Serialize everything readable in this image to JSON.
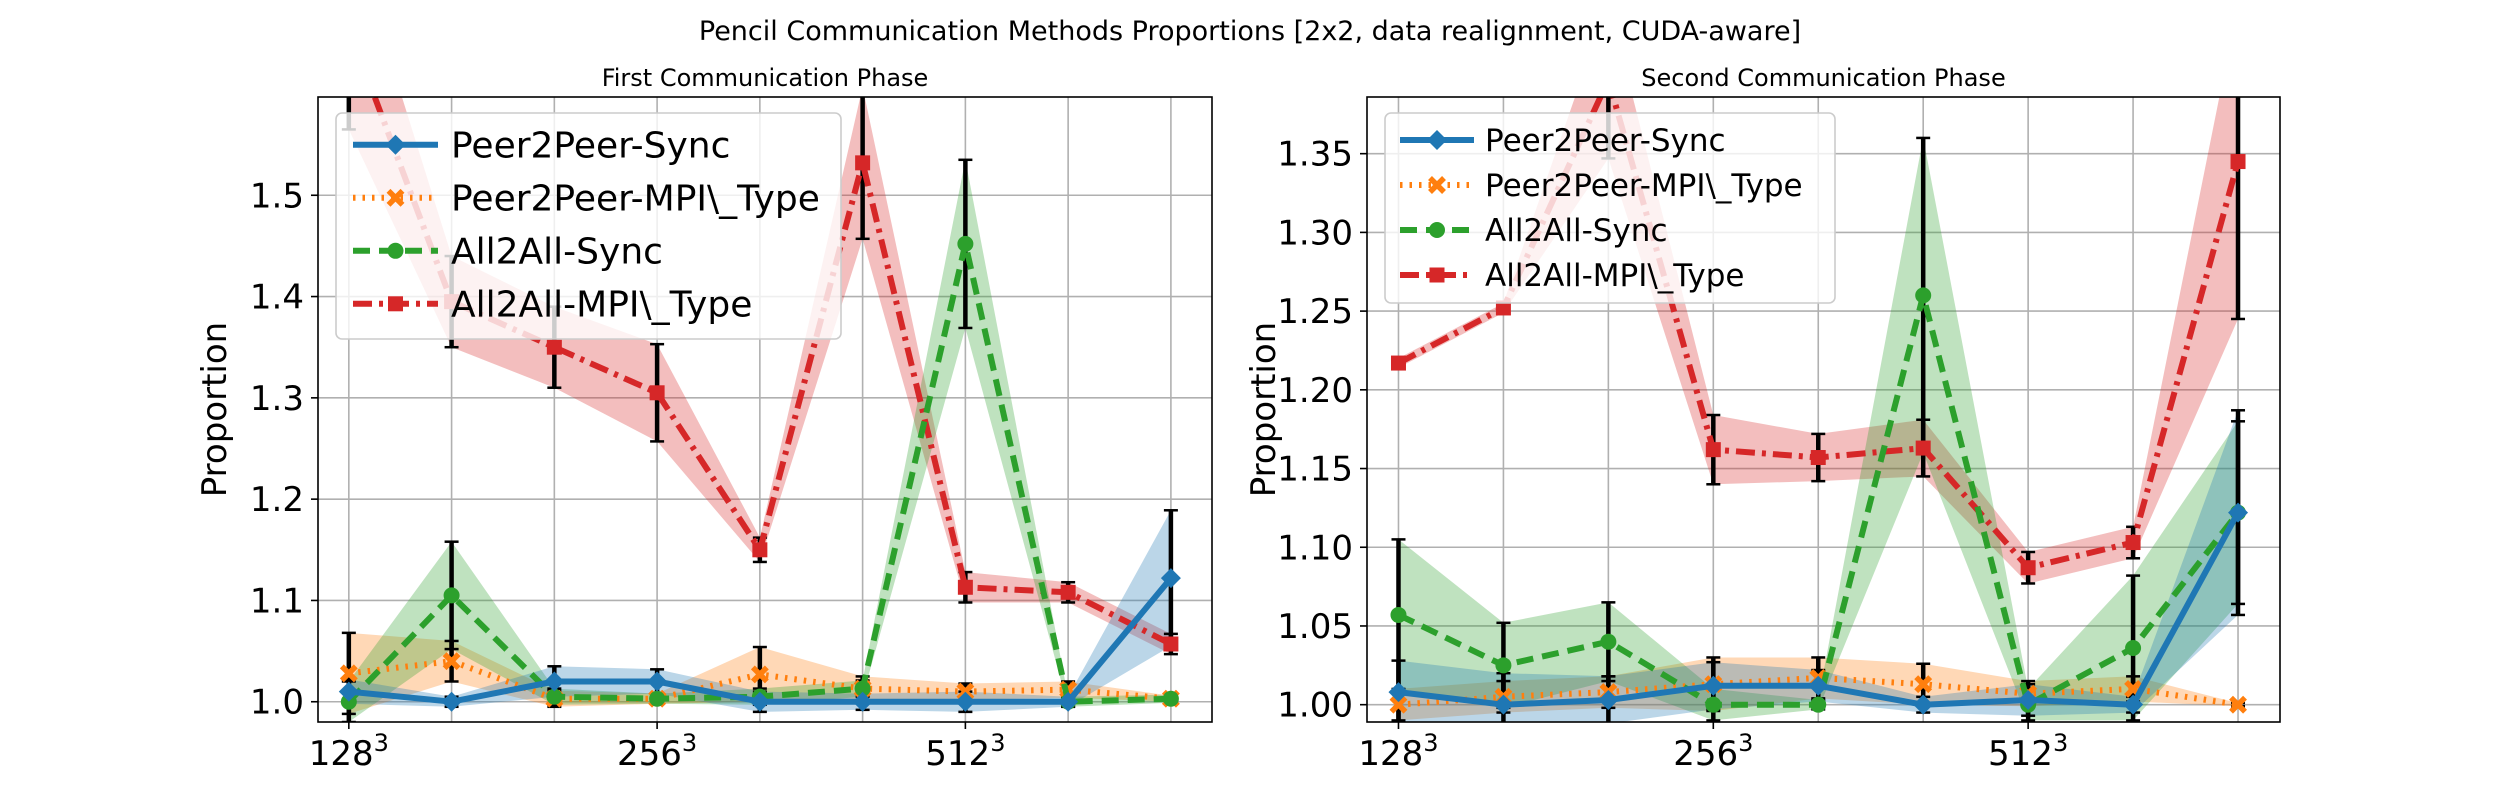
{
  "figure": {
    "title": "Pencil Communication Methods Proportions [2x2, data realignment, CUDA-aware]"
  },
  "colors": {
    "Peer2Peer-Sync": "#1f77b4",
    "Peer2Peer-MPI\\_Type": "#ff7f0e",
    "All2All-Sync": "#2ca02c",
    "All2All-MPI\\_Type": "#d62728"
  },
  "chart_data": [
    {
      "type": "line",
      "title": "First Communication Phase",
      "ylabel": "Proportion",
      "xlabel": "",
      "x": [
        0,
        1,
        2,
        3,
        4,
        5,
        6,
        7,
        8
      ],
      "x_tick_positions": [
        0,
        3,
        6
      ],
      "x_tick_labels": [
        "128",
        "256",
        "512"
      ],
      "x_tick_superscript": "3",
      "xlim": [
        -0.3,
        8.4
      ],
      "ylim": [
        0.98,
        1.597
      ],
      "y_ticks": [
        1.0,
        1.1,
        1.2,
        1.3,
        1.4,
        1.5
      ],
      "y_tick_labels": [
        "1.0",
        "1.1",
        "1.2",
        "1.3",
        "1.4",
        "1.5"
      ],
      "grid": true,
      "legend_position": "upper-left",
      "draw_order": [
        "All2All-MPI\\_Type",
        "Peer2Peer-MPI\\_Type",
        "All2All-Sync",
        "Peer2Peer-Sync"
      ],
      "series": [
        {
          "name": "Peer2Peer-Sync",
          "style": "solid",
          "marker": "diamond",
          "values": [
            1.01,
            1.0,
            1.02,
            1.02,
            1.0,
            1.0,
            1.0,
            1.0,
            1.122
          ],
          "error": [
            0.012,
            0.005,
            0.015,
            0.012,
            0.01,
            0.008,
            0.01,
            0.005,
            0.067
          ]
        },
        {
          "name": "Peer2Peer-MPI\\_Type",
          "style": "dotted",
          "marker": "x",
          "values": [
            1.028,
            1.04,
            1.003,
            1.003,
            1.027,
            1.013,
            1.01,
            1.012,
            1.003
          ],
          "error": [
            0.04,
            0.02,
            0.008,
            0.005,
            0.027,
            0.012,
            0.008,
            0.008,
            0.003
          ]
        },
        {
          "name": "All2All-Sync",
          "style": "dashed",
          "marker": "circle",
          "values": [
            1.0,
            1.105,
            1.005,
            1.003,
            1.005,
            1.013,
            1.452,
            1.0,
            1.003
          ],
          "error": [
            0.02,
            0.053,
            0.008,
            0.005,
            0.008,
            0.008,
            0.083,
            0.005,
            0.004
          ]
        },
        {
          "name": "All2All-MPI\\_Type",
          "style": "dashdot",
          "marker": "square",
          "values": [
            1.665,
            1.395,
            1.35,
            1.305,
            1.15,
            1.532,
            1.113,
            1.108,
            1.057
          ],
          "error": [
            0.1,
            0.045,
            0.04,
            0.048,
            0.012,
            0.075,
            0.015,
            0.01,
            0.01
          ]
        }
      ]
    },
    {
      "type": "line",
      "title": "Second Communication Phase",
      "ylabel": "Proportion",
      "xlabel": "",
      "x": [
        0,
        1,
        2,
        3,
        4,
        5,
        6,
        7,
        8
      ],
      "x_tick_positions": [
        0,
        3,
        6
      ],
      "x_tick_labels": [
        "128",
        "256",
        "512"
      ],
      "x_tick_superscript": "3",
      "xlim": [
        -0.3,
        8.4
      ],
      "ylim": [
        0.989,
        1.386
      ],
      "y_ticks": [
        1.0,
        1.05,
        1.1,
        1.15,
        1.2,
        1.25,
        1.3,
        1.35
      ],
      "y_tick_labels": [
        "1.00",
        "1.05",
        "1.10",
        "1.15",
        "1.20",
        "1.25",
        "1.30",
        "1.35"
      ],
      "grid": true,
      "legend_position": "upper-left",
      "draw_order": [
        "All2All-MPI\\_Type",
        "Peer2Peer-MPI\\_Type",
        "All2All-Sync",
        "Peer2Peer-Sync"
      ],
      "series": [
        {
          "name": "Peer2Peer-Sync",
          "style": "solid",
          "marker": "diamond",
          "values": [
            1.008,
            1.0,
            1.003,
            1.012,
            1.012,
            1.0,
            1.003,
            1.0,
            1.122
          ],
          "error": [
            0.02,
            0.02,
            0.015,
            0.015,
            0.01,
            0.005,
            0.01,
            0.005,
            0.065
          ]
        },
        {
          "name": "Peer2Peer-MPI\\_Type",
          "style": "dotted",
          "marker": "x",
          "values": [
            1.0,
            1.005,
            1.008,
            1.013,
            1.017,
            1.013,
            1.007,
            1.01,
            1.0
          ],
          "error": [
            0.01,
            0.01,
            0.01,
            0.017,
            0.013,
            0.013,
            0.008,
            0.008,
            0.001
          ]
        },
        {
          "name": "All2All-Sync",
          "style": "dashed",
          "marker": "circle",
          "values": [
            1.057,
            1.025,
            1.04,
            1.0,
            1.0,
            1.26,
            1.0,
            1.036,
            1.122
          ],
          "error": [
            0.048,
            0.027,
            0.025,
            0.01,
            0.003,
            0.1,
            0.01,
            0.046,
            0.058
          ]
        },
        {
          "name": "All2All-MPI\\_Type",
          "style": "dashdot",
          "marker": "square",
          "values": [
            1.217,
            1.252,
            1.397,
            1.162,
            1.157,
            1.163,
            1.087,
            1.103,
            1.345
          ],
          "error": [
            0.003,
            0.003,
            0.05,
            0.022,
            0.015,
            0.018,
            0.01,
            0.01,
            0.1
          ]
        }
      ]
    }
  ]
}
